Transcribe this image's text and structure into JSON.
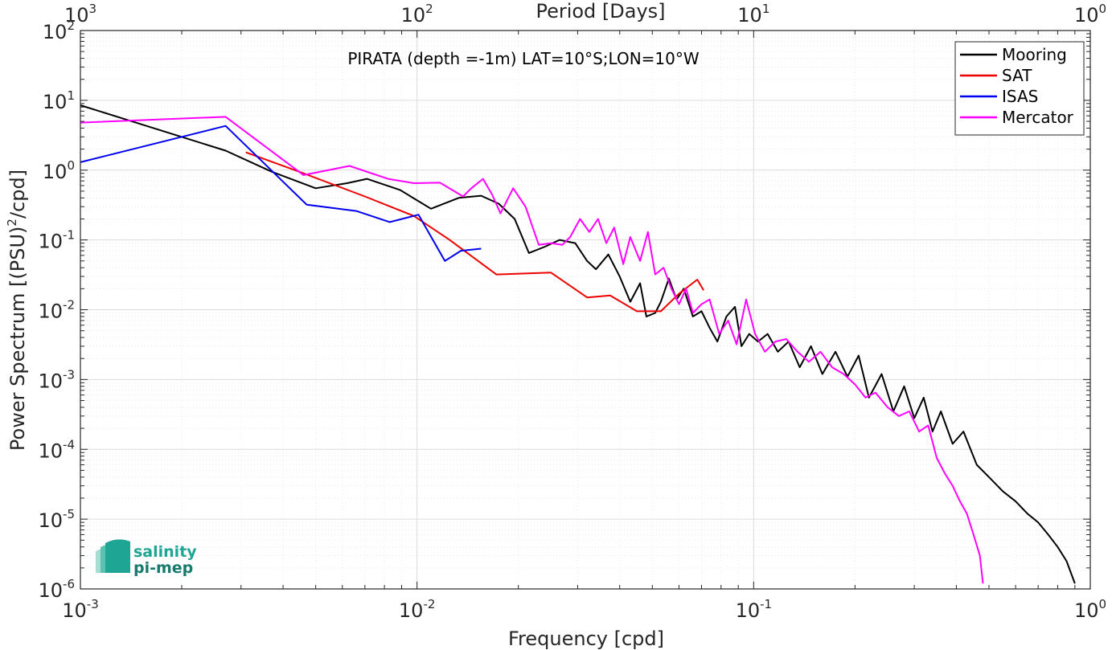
{
  "chart_data": {
    "type": "line",
    "title": "PIRATA (depth =-1m) LAT=10°S;LON=10°W",
    "xlabel": "Frequency [cpd]",
    "ylabel_parts": [
      "Power Spectrum [(PSU)",
      "2",
      "/cpd]"
    ],
    "top_xlabel": "Period [Days]",
    "x_scale": "log",
    "y_scale": "log",
    "xlim": [
      0.001,
      1
    ],
    "ylim": [
      1e-06,
      100
    ],
    "grid": true,
    "legend_position": "top-right",
    "x_ticks": [
      {
        "base": "10",
        "exp": "-3"
      },
      {
        "base": "10",
        "exp": "-2"
      },
      {
        "base": "10",
        "exp": "-1"
      },
      {
        "base": "10",
        "exp": "0"
      }
    ],
    "top_ticks": [
      {
        "base": "10",
        "exp": "3"
      },
      {
        "base": "10",
        "exp": "2"
      },
      {
        "base": "10",
        "exp": "1"
      },
      {
        "base": "10",
        "exp": "0"
      }
    ],
    "y_ticks": [
      {
        "base": "10",
        "exp": "2"
      },
      {
        "base": "10",
        "exp": "1"
      },
      {
        "base": "10",
        "exp": "0"
      },
      {
        "base": "10",
        "exp": "-1"
      },
      {
        "base": "10",
        "exp": "-2"
      },
      {
        "base": "10",
        "exp": "-3"
      },
      {
        "base": "10",
        "exp": "-4"
      },
      {
        "base": "10",
        "exp": "-5"
      },
      {
        "base": "10",
        "exp": "-6"
      }
    ],
    "series": [
      {
        "name": "Mooring",
        "color": "#000000",
        "x": [
          0.001,
          0.0027,
          0.0037,
          0.005,
          0.0062,
          0.0071,
          0.0089,
          0.011,
          0.0133,
          0.0155,
          0.0175,
          0.0195,
          0.0215,
          0.024,
          0.0265,
          0.0295,
          0.032,
          0.034,
          0.037,
          0.04,
          0.043,
          0.046,
          0.048,
          0.051,
          0.053,
          0.056,
          0.059,
          0.062,
          0.066,
          0.07,
          0.074,
          0.078,
          0.083,
          0.088,
          0.092,
          0.097,
          0.103,
          0.11,
          0.118,
          0.127,
          0.137,
          0.148,
          0.16,
          0.175,
          0.19,
          0.205,
          0.22,
          0.24,
          0.26,
          0.28,
          0.3,
          0.32,
          0.34,
          0.36,
          0.39,
          0.42,
          0.46,
          0.5,
          0.55,
          0.6,
          0.65,
          0.7,
          0.75,
          0.8,
          0.85,
          0.9
        ],
        "y": [
          8.5,
          1.9,
          0.95,
          0.55,
          0.65,
          0.75,
          0.52,
          0.28,
          0.4,
          0.43,
          0.33,
          0.2,
          0.065,
          0.08,
          0.1,
          0.09,
          0.05,
          0.038,
          0.062,
          0.03,
          0.013,
          0.024,
          0.008,
          0.009,
          0.013,
          0.028,
          0.014,
          0.02,
          0.008,
          0.0095,
          0.0055,
          0.0035,
          0.008,
          0.011,
          0.003,
          0.0045,
          0.0035,
          0.0045,
          0.0025,
          0.0035,
          0.0015,
          0.003,
          0.0012,
          0.0025,
          0.0011,
          0.0022,
          0.00055,
          0.0012,
          0.00035,
          0.0008,
          0.00028,
          0.00055,
          0.00018,
          0.00035,
          0.00012,
          0.00018,
          6e-05,
          4e-05,
          2.5e-05,
          1.8e-05,
          1.2e-05,
          9e-06,
          6e-06,
          4e-06,
          2.5e-06,
          1.2e-06
        ]
      },
      {
        "name": "SAT",
        "color": "#ee0000",
        "x": [
          0.0031,
          0.0046,
          0.007,
          0.0098,
          0.0125,
          0.0172,
          0.025,
          0.032,
          0.0375,
          0.045,
          0.053,
          0.06,
          0.068,
          0.071
        ],
        "y": [
          1.8,
          0.9,
          0.42,
          0.22,
          0.1,
          0.032,
          0.034,
          0.015,
          0.016,
          0.0095,
          0.0095,
          0.017,
          0.027,
          0.019
        ]
      },
      {
        "name": "ISAS",
        "color": "#0000ee",
        "x": [
          0.001,
          0.0027,
          0.0047,
          0.0066,
          0.0083,
          0.0101,
          0.0121,
          0.0135,
          0.0155
        ],
        "y": [
          1.3,
          4.3,
          0.32,
          0.26,
          0.18,
          0.23,
          0.05,
          0.07,
          0.075
        ]
      },
      {
        "name": "Mercator",
        "color": "#ff00ff",
        "x": [
          0.001,
          0.0027,
          0.0046,
          0.0063,
          0.0082,
          0.0098,
          0.0117,
          0.0137,
          0.0145,
          0.0157,
          0.0167,
          0.0177,
          0.0193,
          0.021,
          0.023,
          0.025,
          0.027,
          0.0285,
          0.0305,
          0.0325,
          0.0345,
          0.0365,
          0.0385,
          0.041,
          0.043,
          0.046,
          0.0485,
          0.051,
          0.054,
          0.057,
          0.06,
          0.063,
          0.066,
          0.07,
          0.074,
          0.079,
          0.084,
          0.089,
          0.095,
          0.101,
          0.108,
          0.116,
          0.125,
          0.135,
          0.146,
          0.158,
          0.171,
          0.185,
          0.2,
          0.215,
          0.23,
          0.25,
          0.27,
          0.29,
          0.31,
          0.33,
          0.35,
          0.37,
          0.39,
          0.41,
          0.43,
          0.45,
          0.47,
          0.48
        ],
        "y": [
          4.8,
          5.8,
          0.85,
          1.15,
          0.75,
          0.65,
          0.66,
          0.42,
          0.55,
          0.75,
          0.45,
          0.24,
          0.55,
          0.3,
          0.085,
          0.09,
          0.085,
          0.11,
          0.2,
          0.13,
          0.2,
          0.09,
          0.15,
          0.045,
          0.11,
          0.05,
          0.13,
          0.032,
          0.04,
          0.02,
          0.012,
          0.02,
          0.009,
          0.012,
          0.014,
          0.0045,
          0.007,
          0.0032,
          0.014,
          0.0045,
          0.0025,
          0.0035,
          0.0038,
          0.0025,
          0.0018,
          0.0025,
          0.0015,
          0.0012,
          0.00085,
          0.00055,
          0.00065,
          0.0004,
          0.0003,
          0.00035,
          0.00018,
          0.00022,
          7.5e-05,
          4.5e-05,
          3e-05,
          1.8e-05,
          1.2e-05,
          6e-06,
          3e-06,
          1.2e-06
        ]
      }
    ]
  },
  "logo": {
    "line1": "salinity",
    "line2": "pi-mep"
  }
}
